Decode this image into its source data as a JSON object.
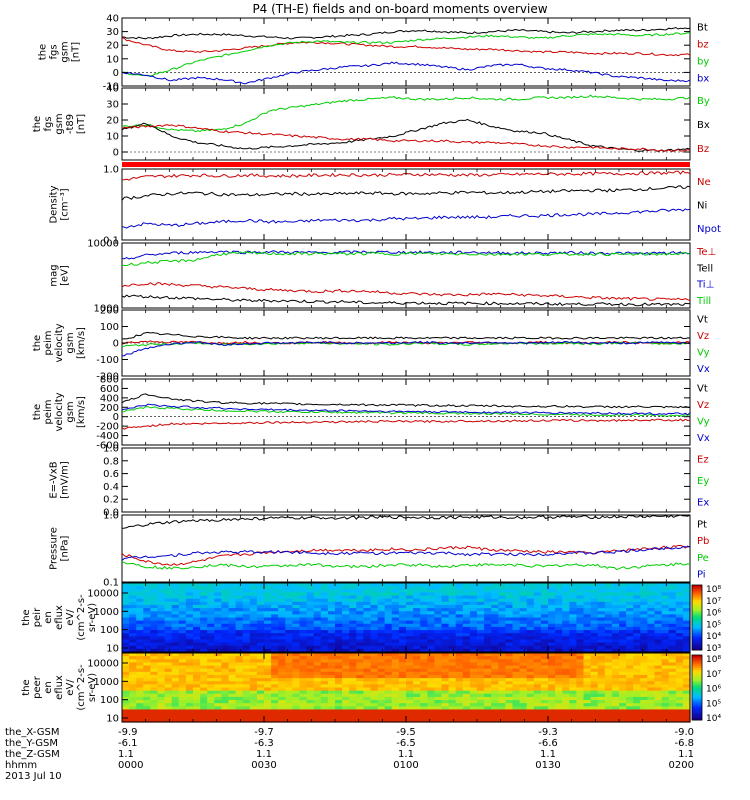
{
  "chart_data": {
    "type": "line",
    "title": "P4 (TH-E) fields and on-board moments overview",
    "x_range": [
      "00:00",
      "02:00"
    ],
    "panels": [
      {
        "id": "fgs-gsm",
        "ylabel": [
          "the",
          "fgs",
          "gsm",
          "[nT]"
        ],
        "ylim": [
          -10,
          40
        ],
        "yticks": [
          "40",
          "30",
          "20",
          "10",
          "0",
          "-10"
        ],
        "scale": "linear",
        "series": [
          {
            "name": "Bt",
            "color": "#000000",
            "values": [
              26,
              25,
              27,
              28,
              28,
              27,
              26,
              25,
              26,
              27,
              28,
              30,
              31,
              30,
              29,
              30,
              31,
              30,
              29,
              30,
              31,
              31,
              32,
              33
            ]
          },
          {
            "name": "bz",
            "color": "#cc0000",
            "values": [
              25,
              20,
              16,
              15,
              16,
              18,
              20,
              22,
              22,
              21,
              20,
              19,
              19,
              18,
              17,
              17,
              16,
              15,
              15,
              14,
              14,
              14,
              13,
              13
            ]
          },
          {
            "name": "by",
            "color": "#00cc00",
            "values": [
              0,
              -3,
              2,
              8,
              12,
              16,
              20,
              22,
              23,
              22,
              22,
              22,
              24,
              25,
              26,
              27,
              26,
              25,
              27,
              28,
              28,
              27,
              28,
              29
            ]
          },
          {
            "name": "bx",
            "color": "#0000cc",
            "values": [
              0,
              -2,
              -6,
              -4,
              -5,
              -8,
              -4,
              0,
              2,
              4,
              5,
              7,
              6,
              4,
              2,
              5,
              6,
              3,
              2,
              0,
              -3,
              -4,
              -6,
              -6
            ]
          }
        ]
      },
      {
        "id": "fgs-t89",
        "ylabel": [
          "the",
          "fgs",
          "gsm",
          "-t89",
          "[nT]"
        ],
        "ylim": [
          -5,
          40
        ],
        "yticks": [
          "40",
          "30",
          "20",
          "10",
          "0"
        ],
        "scale": "linear",
        "series": [
          {
            "name": "By",
            "color": "#00cc00",
            "values": [
              16,
              17,
              14,
              13,
              14,
              18,
              26,
              28,
              30,
              32,
              33,
              34,
              33,
              33,
              34,
              33,
              33,
              34,
              34,
              35,
              34,
              33,
              33,
              34
            ]
          },
          {
            "name": "Bx",
            "color": "#000000",
            "values": [
              14,
              18,
              10,
              6,
              4,
              2,
              3,
              4,
              5,
              6,
              8,
              10,
              14,
              18,
              20,
              16,
              13,
              12,
              8,
              4,
              2,
              1,
              1,
              2
            ]
          },
          {
            "name": "Bz",
            "color": "#cc0000",
            "values": [
              15,
              16,
              17,
              15,
              13,
              12,
              11,
              10,
              9,
              8,
              8,
              7,
              7,
              7,
              6,
              6,
              5,
              4,
              3,
              3,
              2,
              2,
              1,
              1
            ]
          }
        ]
      },
      {
        "id": "density",
        "ylabel": [
          "Density",
          "[cm⁻³]"
        ],
        "ylim": [
          0.1,
          1.0
        ],
        "yticks": [
          "1.0",
          "0.1"
        ],
        "scale": "log",
        "series": [
          {
            "name": "Ne",
            "color": "#cc0000",
            "values": [
              0.7,
              0.78,
              0.8,
              0.82,
              0.8,
              0.82,
              0.8,
              0.8,
              0.82,
              0.83,
              0.82,
              0.83,
              0.84,
              0.83,
              0.82,
              0.83,
              0.84,
              0.85,
              0.85,
              0.86,
              0.86,
              0.87,
              0.88,
              0.9
            ]
          },
          {
            "name": "Ni",
            "color": "#000000",
            "values": [
              0.38,
              0.42,
              0.45,
              0.46,
              0.44,
              0.43,
              0.44,
              0.45,
              0.44,
              0.45,
              0.46,
              0.45,
              0.45,
              0.46,
              0.47,
              0.46,
              0.47,
              0.48,
              0.49,
              0.5,
              0.5,
              0.52,
              0.54,
              0.56
            ]
          },
          {
            "name": "Npot",
            "color": "#0000cc",
            "values": [
              0.15,
              0.17,
              0.16,
              0.17,
              0.18,
              0.19,
              0.18,
              0.18,
              0.19,
              0.19,
              0.19,
              0.2,
              0.2,
              0.21,
              0.21,
              0.21,
              0.22,
              0.22,
              0.23,
              0.23,
              0.24,
              0.25,
              0.26,
              0.27
            ]
          }
        ]
      },
      {
        "id": "temperature",
        "ylabel": [
          "mag",
          "[eV]"
        ],
        "ylim": [
          1000,
          10000
        ],
        "yticks": [
          "10000",
          "1000"
        ],
        "scale": "log",
        "series": [
          {
            "name": "Te⊥",
            "color": "#cc0000",
            "values": [
              2200,
              2400,
              2300,
              2200,
              2100,
              2000,
              1900,
              1850,
              1800,
              1850,
              1800,
              1700,
              1650,
              1600,
              1600,
              1650,
              1600,
              1550,
              1500,
              1450,
              1400,
              1380,
              1350,
              1350
            ]
          },
          {
            "name": "Tell",
            "color": "#000000",
            "values": [
              1550,
              1500,
              1450,
              1400,
              1350,
              1300,
              1300,
              1280,
              1250,
              1250,
              1200,
              1200,
              1200,
              1180,
              1180,
              1180,
              1170,
              1160,
              1150,
              1150,
              1150,
              1140,
              1130,
              1130
            ]
          },
          {
            "name": "Ti⊥",
            "color": "#0000cc",
            "values": [
              5500,
              6500,
              7000,
              7200,
              7400,
              7200,
              7300,
              7200,
              7100,
              7200,
              7300,
              7200,
              7200,
              7100,
              7200,
              7100,
              7000,
              7000,
              7100,
              7000,
              7000,
              6900,
              7000,
              7000
            ]
          },
          {
            "name": "Till",
            "color": "#00cc00",
            "values": [
              4500,
              5000,
              5200,
              5500,
              6800,
              7000,
              6900,
              6800,
              6900,
              6800,
              6900,
              6800,
              6900,
              6800,
              6800,
              6700,
              6800,
              6700,
              6700,
              6800,
              6700,
              6700,
              6800,
              6800
            ]
          }
        ]
      },
      {
        "id": "velocity-gsm",
        "ylabel": [
          "the",
          "peim",
          "velocity",
          "gsm",
          "[km/s]"
        ],
        "ylim": [
          -200,
          200
        ],
        "yticks": [
          "200",
          "100",
          "0",
          "-100",
          "-200"
        ],
        "scale": "linear",
        "series": [
          {
            "name": "Vt",
            "color": "#000000",
            "values": [
              20,
              60,
              50,
              40,
              35,
              30,
              30,
              30,
              30,
              30,
              30,
              30,
              30,
              30,
              30,
              30,
              30,
              30,
              30,
              30,
              30,
              30,
              30,
              30
            ]
          },
          {
            "name": "Vz",
            "color": "#cc0000",
            "values": [
              0,
              10,
              5,
              5,
              0,
              5,
              0,
              0,
              5,
              0,
              0,
              5,
              0,
              0,
              5,
              0,
              0,
              5,
              0,
              0,
              5,
              0,
              0,
              5
            ]
          },
          {
            "name": "Vy",
            "color": "#00cc00",
            "values": [
              -20,
              -10,
              -5,
              0,
              -10,
              -5,
              -5,
              0,
              0,
              -5,
              -5,
              -10,
              0,
              -5,
              -10,
              -5,
              0,
              -5,
              0,
              -5,
              0,
              0,
              -5,
              0
            ]
          },
          {
            "name": "Vx",
            "color": "#0000cc",
            "values": [
              -80,
              -30,
              -5,
              5,
              -10,
              -5,
              0,
              0,
              5,
              0,
              0,
              0,
              5,
              0,
              0,
              5,
              0,
              0,
              5,
              0,
              0,
              0,
              5,
              0
            ]
          }
        ]
      },
      {
        "id": "velocity-gse",
        "ylabel": [
          "the",
          "peim",
          "velocity",
          "gsm",
          "[km/s]"
        ],
        "ylim": [
          -600,
          800
        ],
        "yticks": [
          "800",
          "600",
          "400",
          "200",
          "0",
          "-200",
          "-400",
          "-600"
        ],
        "scale": "linear",
        "series": [
          {
            "name": "Vt",
            "color": "#000000",
            "values": [
              300,
              480,
              380,
              330,
              300,
              290,
              280,
              270,
              260,
              260,
              250,
              250,
              240,
              240,
              230,
              230,
              220,
              220,
              220,
              210,
              210,
              210,
              200,
              200
            ]
          },
          {
            "name": "Vz",
            "color": "#cc0000",
            "values": [
              -250,
              -200,
              -150,
              -150,
              -140,
              -130,
              -120,
              -120,
              -110,
              -110,
              -100,
              -100,
              -100,
              -100,
              -90,
              -90,
              -90,
              -80,
              -80,
              -80,
              -80,
              -70,
              -70,
              -70
            ]
          },
          {
            "name": "Vy",
            "color": "#00cc00",
            "values": [
              100,
              200,
              180,
              150,
              130,
              120,
              110,
              100,
              100,
              90,
              90,
              80,
              80,
              70,
              70,
              60,
              60,
              50,
              50,
              40,
              40,
              40,
              30,
              30
            ]
          },
          {
            "name": "Vx",
            "color": "#0000cc",
            "values": [
              150,
              250,
              220,
              200,
              180,
              160,
              150,
              140,
              130,
              130,
              120,
              110,
              110,
              100,
              100,
              90,
              90,
              80,
              80,
              80,
              70,
              70,
              60,
              60
            ]
          }
        ]
      },
      {
        "id": "efield",
        "ylabel": [
          "E=-VxB",
          "[mV/m]"
        ],
        "ylim": [
          0,
          1.0
        ],
        "yticks": [
          "1.0",
          "0.8",
          "0.6",
          "0.4",
          "0.2",
          "0.0"
        ],
        "scale": "linear",
        "series": [
          {
            "name": "Ez",
            "color": "#cc0000",
            "values": []
          },
          {
            "name": "Ey",
            "color": "#00cc00",
            "values": []
          },
          {
            "name": "Ex",
            "color": "#0000cc",
            "values": []
          }
        ]
      },
      {
        "id": "pressure",
        "ylabel": [
          "Pressure",
          "[nPa]"
        ],
        "ylim": [
          0.1,
          1.0
        ],
        "yticks": [
          "1.0",
          "0.1"
        ],
        "scale": "log",
        "series": [
          {
            "name": "Pt",
            "color": "#000000",
            "values": [
              0.62,
              0.72,
              0.78,
              0.82,
              0.85,
              0.87,
              0.9,
              0.9,
              0.91,
              0.91,
              0.92,
              0.93,
              0.92,
              0.92,
              0.93,
              0.93,
              0.92,
              0.93,
              0.94,
              0.93,
              0.94,
              0.95,
              0.96,
              0.97
            ]
          },
          {
            "name": "Pb",
            "color": "#cc0000",
            "values": [
              0.26,
              0.2,
              0.18,
              0.2,
              0.24,
              0.26,
              0.28,
              0.29,
              0.3,
              0.3,
              0.3,
              0.31,
              0.3,
              0.32,
              0.33,
              0.3,
              0.29,
              0.28,
              0.28,
              0.27,
              0.29,
              0.31,
              0.33,
              0.34
            ]
          },
          {
            "name": "Pe",
            "color": "#00cc00",
            "values": [
              0.2,
              0.17,
              0.16,
              0.17,
              0.18,
              0.17,
              0.17,
              0.18,
              0.18,
              0.17,
              0.17,
              0.18,
              0.18,
              0.17,
              0.18,
              0.18,
              0.18,
              0.17,
              0.18,
              0.18,
              0.16,
              0.17,
              0.18,
              0.19
            ]
          },
          {
            "name": "Pi",
            "color": "#0000cc",
            "values": [
              0.22,
              0.24,
              0.25,
              0.27,
              0.28,
              0.28,
              0.28,
              0.28,
              0.27,
              0.27,
              0.27,
              0.27,
              0.27,
              0.27,
              0.26,
              0.26,
              0.26,
              0.26,
              0.27,
              0.27,
              0.28,
              0.3,
              0.32,
              0.34
            ]
          }
        ]
      }
    ],
    "spectrograms": [
      {
        "id": "ion-efLux",
        "ylabel": [
          "the",
          "peir",
          "en",
          "eflux",
          "eV/",
          "(cm^2-s-",
          "sr-eV)"
        ],
        "yticks": [
          "10000",
          "1000",
          "100",
          "10"
        ],
        "colorbar_ticks": [
          "10⁸",
          "10⁷",
          "10⁶",
          "10⁵",
          "10⁴",
          "10³"
        ]
      },
      {
        "id": "electron-eflux",
        "ylabel": [
          "the",
          "peer",
          "en",
          "eflux",
          "eV/",
          "(cm^2-s-",
          "sr-eV)"
        ],
        "yticks": [
          "10000",
          "1000",
          "100",
          "10"
        ],
        "colorbar_ticks": [
          "10⁸",
          "10⁷",
          "10⁶",
          "10⁵",
          "10⁴"
        ]
      }
    ],
    "xaxis": {
      "row_labels": [
        "the_X-GSM",
        "the_Y-GSM",
        "the_Z-GSM",
        "hhmm",
        "2013 Jul 10"
      ],
      "columns": [
        {
          "x": "-9.9",
          "y": "-6.1",
          "z": "1.1",
          "t": "0000"
        },
        {
          "x": "-9.7",
          "y": "-6.3",
          "z": "1.1",
          "t": "0030"
        },
        {
          "x": "-9.5",
          "y": "-6.5",
          "z": "1.1",
          "t": "0100"
        },
        {
          "x": "-9.3",
          "y": "-6.6",
          "z": "1.1",
          "t": "0130"
        },
        {
          "x": "-9.0",
          "y": "-6.8",
          "z": "1.1",
          "t": "0200"
        }
      ]
    }
  }
}
